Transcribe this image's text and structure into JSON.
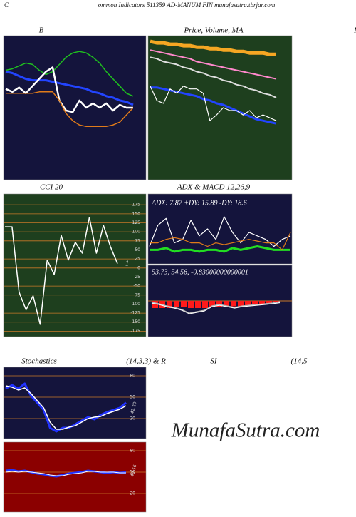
{
  "header": {
    "left": "C",
    "title": "ommon  Indicators 511359 AD-MANUM FIN  munafasutra.tbrjar.com",
    "cut_title": "I"
  },
  "watermark": "MunafaSutra.com",
  "chart_data": [
    {
      "type": "line",
      "title": "B",
      "background": "#14143c",
      "ylim": [
        0,
        100
      ],
      "series": [
        {
          "color": "#1fbf1f",
          "values": [
            76,
            77,
            79,
            81,
            80,
            76,
            73,
            75,
            80,
            85,
            88,
            89,
            88,
            85,
            81,
            75,
            70,
            65,
            60,
            58
          ]
        },
        {
          "color": "#2244ff",
          "values": [
            75,
            74,
            72,
            70,
            69,
            69,
            69,
            68,
            67,
            66,
            65,
            64,
            63,
            61,
            60,
            58,
            57,
            55,
            54,
            52
          ]
        },
        {
          "color": "#ffffff",
          "values": [
            63,
            61,
            64,
            60,
            65,
            70,
            75,
            78,
            55,
            48,
            47,
            55,
            50,
            53,
            50,
            53,
            48,
            52,
            50,
            50
          ]
        },
        {
          "color": "#e07b1a",
          "values": [
            60,
            60,
            60,
            60,
            60,
            61,
            61,
            61,
            55,
            46,
            41,
            38,
            37,
            37,
            37,
            37,
            38,
            40,
            45,
            50
          ]
        }
      ]
    },
    {
      "type": "line",
      "title": "Price,  Volume, MA",
      "background": "#1e3f1e",
      "ylim": [
        0,
        100
      ],
      "series": [
        {
          "color": "#f5a623",
          "values": [
            96,
            95,
            95,
            94,
            94,
            93,
            93,
            92,
            92,
            91,
            91,
            90,
            90,
            89,
            89,
            88,
            88,
            88,
            87,
            87
          ]
        },
        {
          "color": "#ff88cc",
          "values": [
            90,
            89,
            88,
            87,
            86,
            85,
            84,
            82,
            81,
            80,
            79,
            78,
            77,
            76,
            75,
            74,
            73,
            72,
            71,
            70
          ]
        },
        {
          "color": "#dddddd",
          "values": [
            85,
            84,
            82,
            81,
            80,
            78,
            77,
            75,
            74,
            72,
            71,
            69,
            68,
            66,
            65,
            63,
            62,
            60,
            59,
            57
          ]
        },
        {
          "color": "#2244ff",
          "values": [
            64,
            64,
            63,
            62,
            61,
            60,
            59,
            58,
            56,
            55,
            53,
            52,
            50,
            48,
            46,
            44,
            42,
            41,
            40,
            39
          ]
        },
        {
          "color": "#ffffff",
          "values": [
            65,
            55,
            53,
            63,
            60,
            65,
            63,
            63,
            60,
            41,
            45,
            50,
            48,
            48,
            45,
            48,
            43,
            45,
            43,
            41
          ]
        }
      ]
    },
    {
      "type": "line",
      "title": "CCI 20",
      "background": "#1e3f1e",
      "grid_color": "#c87828",
      "ylim": [
        -190,
        205
      ],
      "yticks": [
        175,
        150,
        125,
        100,
        75,
        50,
        25,
        0,
        -25,
        -50,
        -75,
        -100,
        -125,
        -150,
        -175
      ],
      "annotation": "1",
      "series": [
        {
          "color": "#ffffff",
          "values": [
            114,
            114,
            -67,
            -116,
            -77,
            -156,
            22,
            -18,
            90,
            22,
            71,
            41,
            140,
            41,
            118,
            59,
            12
          ]
        }
      ]
    },
    {
      "type": "line",
      "title": "ADX  & MACD 12,26,9",
      "background": "#14143c",
      "ylim": [
        0,
        40
      ],
      "annotation": "ADX: 7.87 +DY: 15.89 -DY: 18.6",
      "series": [
        {
          "color": "#22dd22",
          "values": [
            8,
            8,
            9,
            7,
            8,
            8,
            7,
            8,
            8,
            7,
            9,
            8,
            9,
            10,
            9,
            8,
            8,
            8
          ]
        },
        {
          "color": "#ffffff",
          "values": [
            10,
            22,
            26,
            12,
            14,
            25,
            16,
            20,
            14,
            27,
            18,
            12,
            18,
            16,
            14,
            10,
            14,
            16
          ]
        },
        {
          "color": "#e07b1a",
          "values": [
            12,
            12,
            14,
            15,
            14,
            12,
            12,
            10,
            12,
            11,
            12,
            13,
            14,
            13,
            12,
            12,
            8,
            18
          ]
        }
      ]
    },
    {
      "type": "line",
      "background": "#14143c",
      "ylim": [
        30,
        80
      ],
      "annotation": "53.73,  54.56,  -0.83000000000001",
      "histogram": {
        "color": "#ff1a1a",
        "hlim": [
          -20,
          20
        ],
        "values": [
          -4,
          -4,
          -4,
          -3.5,
          -3.5,
          -4,
          -4,
          -4,
          -3.5,
          -3.5,
          -3,
          -3,
          -3,
          -2.5,
          -2.5,
          -2,
          -1.5,
          -0.83
        ]
      },
      "series": [
        {
          "color": "#ffffff",
          "values": [
            53.5,
            52.5,
            51,
            50,
            48.5,
            46,
            47,
            48,
            51,
            52,
            51,
            50,
            51,
            51.5,
            52,
            52.5,
            53,
            53.73
          ]
        },
        {
          "color": "#bbbbbb",
          "values": [
            54,
            53,
            51.5,
            50.5,
            49,
            46.5,
            47.5,
            48.5,
            51.5,
            52.5,
            51.5,
            50.5,
            51.5,
            52,
            52.5,
            53,
            53.5,
            54.56
          ]
        }
      ]
    },
    {
      "type": "line",
      "title_parts": [
        "Stochastics",
        "(14,3,3) & R",
        "SI",
        "(14,5"
      ],
      "background": "#14143c",
      "grid_color": "#c87828",
      "ylim": [
        -8,
        92
      ],
      "yticks": [
        20,
        50,
        80
      ],
      "series": [
        {
          "color": "#2233ff",
          "values": [
            62,
            67,
            62,
            69,
            52,
            42,
            32,
            7,
            2,
            7,
            7,
            12,
            17,
            22,
            19,
            25,
            29,
            32,
            35,
            42.29
          ]
        },
        {
          "color": "#ffffff",
          "values": [
            66,
            64,
            60,
            63,
            55,
            45,
            35,
            15,
            5,
            5,
            8,
            10,
            15,
            20,
            22,
            23,
            27,
            30,
            33,
            38
          ]
        }
      ]
    },
    {
      "type": "line",
      "background": "#8b0000",
      "grid_color": "#c87828",
      "ylim": [
        -6,
        92
      ],
      "yticks": [
        20,
        50,
        80
      ],
      "series": [
        {
          "color": "#2233ff",
          "values": [
            52,
            53,
            51,
            52,
            50,
            48,
            47,
            45,
            44,
            46,
            48,
            49,
            50,
            52,
            51,
            50,
            49,
            50,
            49,
            49.56
          ]
        },
        {
          "color": "#ffffff",
          "values": [
            50,
            51,
            50,
            51,
            50,
            49,
            48,
            46,
            45,
            45,
            47,
            48,
            49,
            51,
            51,
            50,
            50,
            50,
            49,
            49
          ]
        }
      ]
    }
  ]
}
